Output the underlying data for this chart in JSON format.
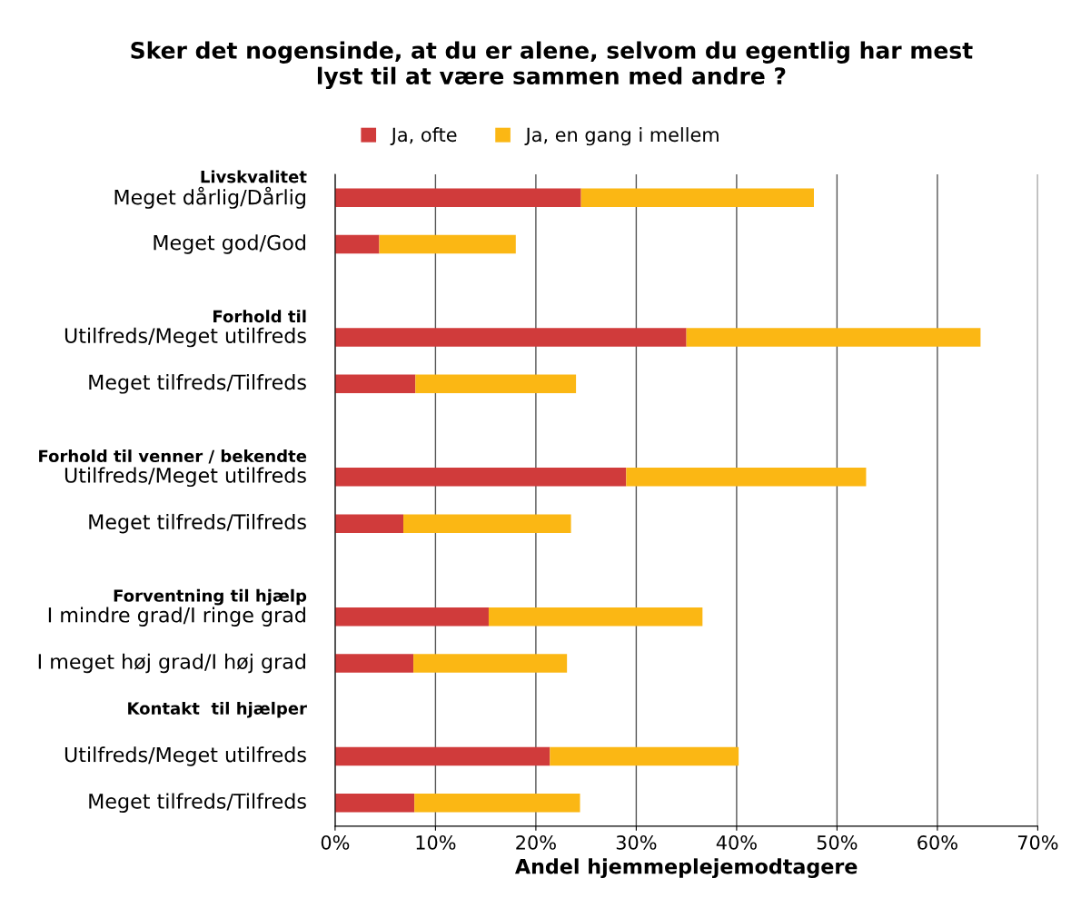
{
  "chart_data": {
    "type": "bar",
    "orientation": "horizontal",
    "stacked": true,
    "title": "Sker det nogensinde, at du er alene, selvom du egentlig har mest\nlyst til at være sammen med andre ?",
    "xlabel": "Andel hjemmeplejemodtagere",
    "categories": [
      "Livskvalitet\nMeget dårlig/Dårlig",
      "Meget god/God",
      null,
      "Forhold til\nUtilfreds/Meget utilfreds",
      "Meget tilfreds/Tilfreds",
      null,
      "Forhold til venner / bekendte\nUtilfreds/Meget utilfreds",
      "Meget tilfreds/Tilfreds",
      null,
      "Forventning til hjælp\nI mindre grad/I ringe grad",
      "I meget høj grad/I høj grad",
      "Kontakt  til hjælper\n",
      "Utilfreds/Meget utilfreds",
      "Meget tilfreds/Tilfreds"
    ],
    "series": [
      {
        "name": "Ja, ofte",
        "color": "#d03b3b",
        "values": [
          24.5,
          4.4,
          null,
          35.0,
          8.0,
          null,
          29.0,
          6.8,
          null,
          15.3,
          7.8,
          null,
          21.4,
          7.9
        ]
      },
      {
        "name": "Ja, en gang i mellem",
        "color": "#fbb714",
        "values": [
          23.2,
          13.6,
          null,
          29.3,
          16.0,
          null,
          23.9,
          16.7,
          null,
          21.3,
          15.3,
          null,
          18.8,
          16.5
        ]
      }
    ],
    "xlim": [
      0,
      70
    ],
    "xticks": [
      {
        "value": 0,
        "label": "0%"
      },
      {
        "value": 10,
        "label": "10%"
      },
      {
        "value": 20,
        "label": "20%"
      },
      {
        "value": 30,
        "label": "30%"
      },
      {
        "value": 40,
        "label": "40%"
      },
      {
        "value": 50,
        "label": "50%"
      },
      {
        "value": 60,
        "label": "60%"
      },
      {
        "value": 70,
        "label": "70%"
      }
    ],
    "grid": "x",
    "legend": "top"
  }
}
